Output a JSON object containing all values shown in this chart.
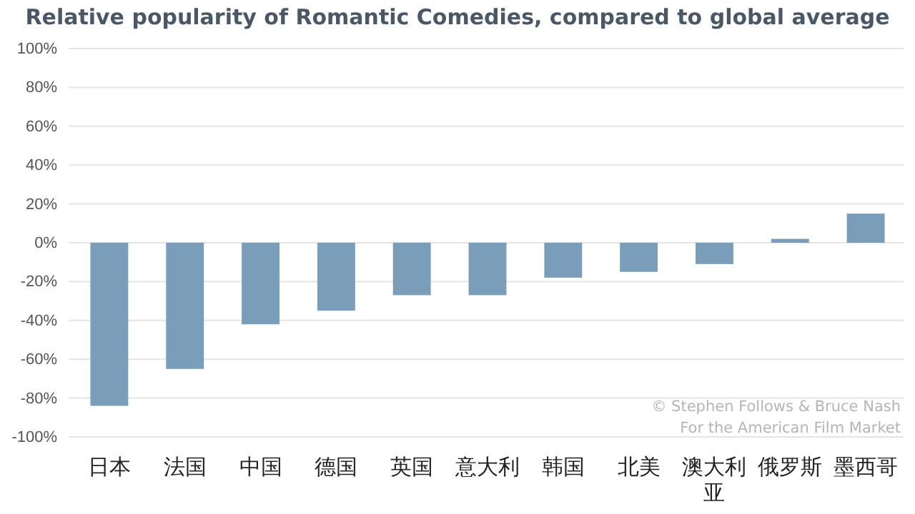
{
  "chart_data": {
    "type": "bar",
    "title": "Relative popularity of Romantic Comedies, compared to global average",
    "categories": [
      "日本",
      "法国",
      "中国",
      "德国",
      "英国",
      "意大利",
      "韩国",
      "北美",
      "澳大利亚",
      "俄罗斯",
      "墨西哥"
    ],
    "values": [
      -84,
      -65,
      -42,
      -35,
      -27,
      -27,
      -18,
      -15,
      -11,
      2,
      15
    ],
    "color": "#7a9eb9",
    "ylim": [
      -100,
      100
    ],
    "yticks": [
      {
        "value": -100,
        "label": "-100%"
      },
      {
        "value": -80,
        "label": "-80%"
      },
      {
        "value": -60,
        "label": "-60%"
      },
      {
        "value": -40,
        "label": "-40%"
      },
      {
        "value": -20,
        "label": "-20%"
      },
      {
        "value": 0,
        "label": "0%"
      },
      {
        "value": 20,
        "label": "20%"
      },
      {
        "value": 40,
        "label": "40%"
      },
      {
        "value": 60,
        "label": "60%"
      },
      {
        "value": 80,
        "label": "80%"
      },
      {
        "value": 100,
        "label": "100%"
      }
    ],
    "grid": "y",
    "annotations": [
      "© Stephen Follows & Bruce Nash",
      "For the American Film Market"
    ]
  }
}
